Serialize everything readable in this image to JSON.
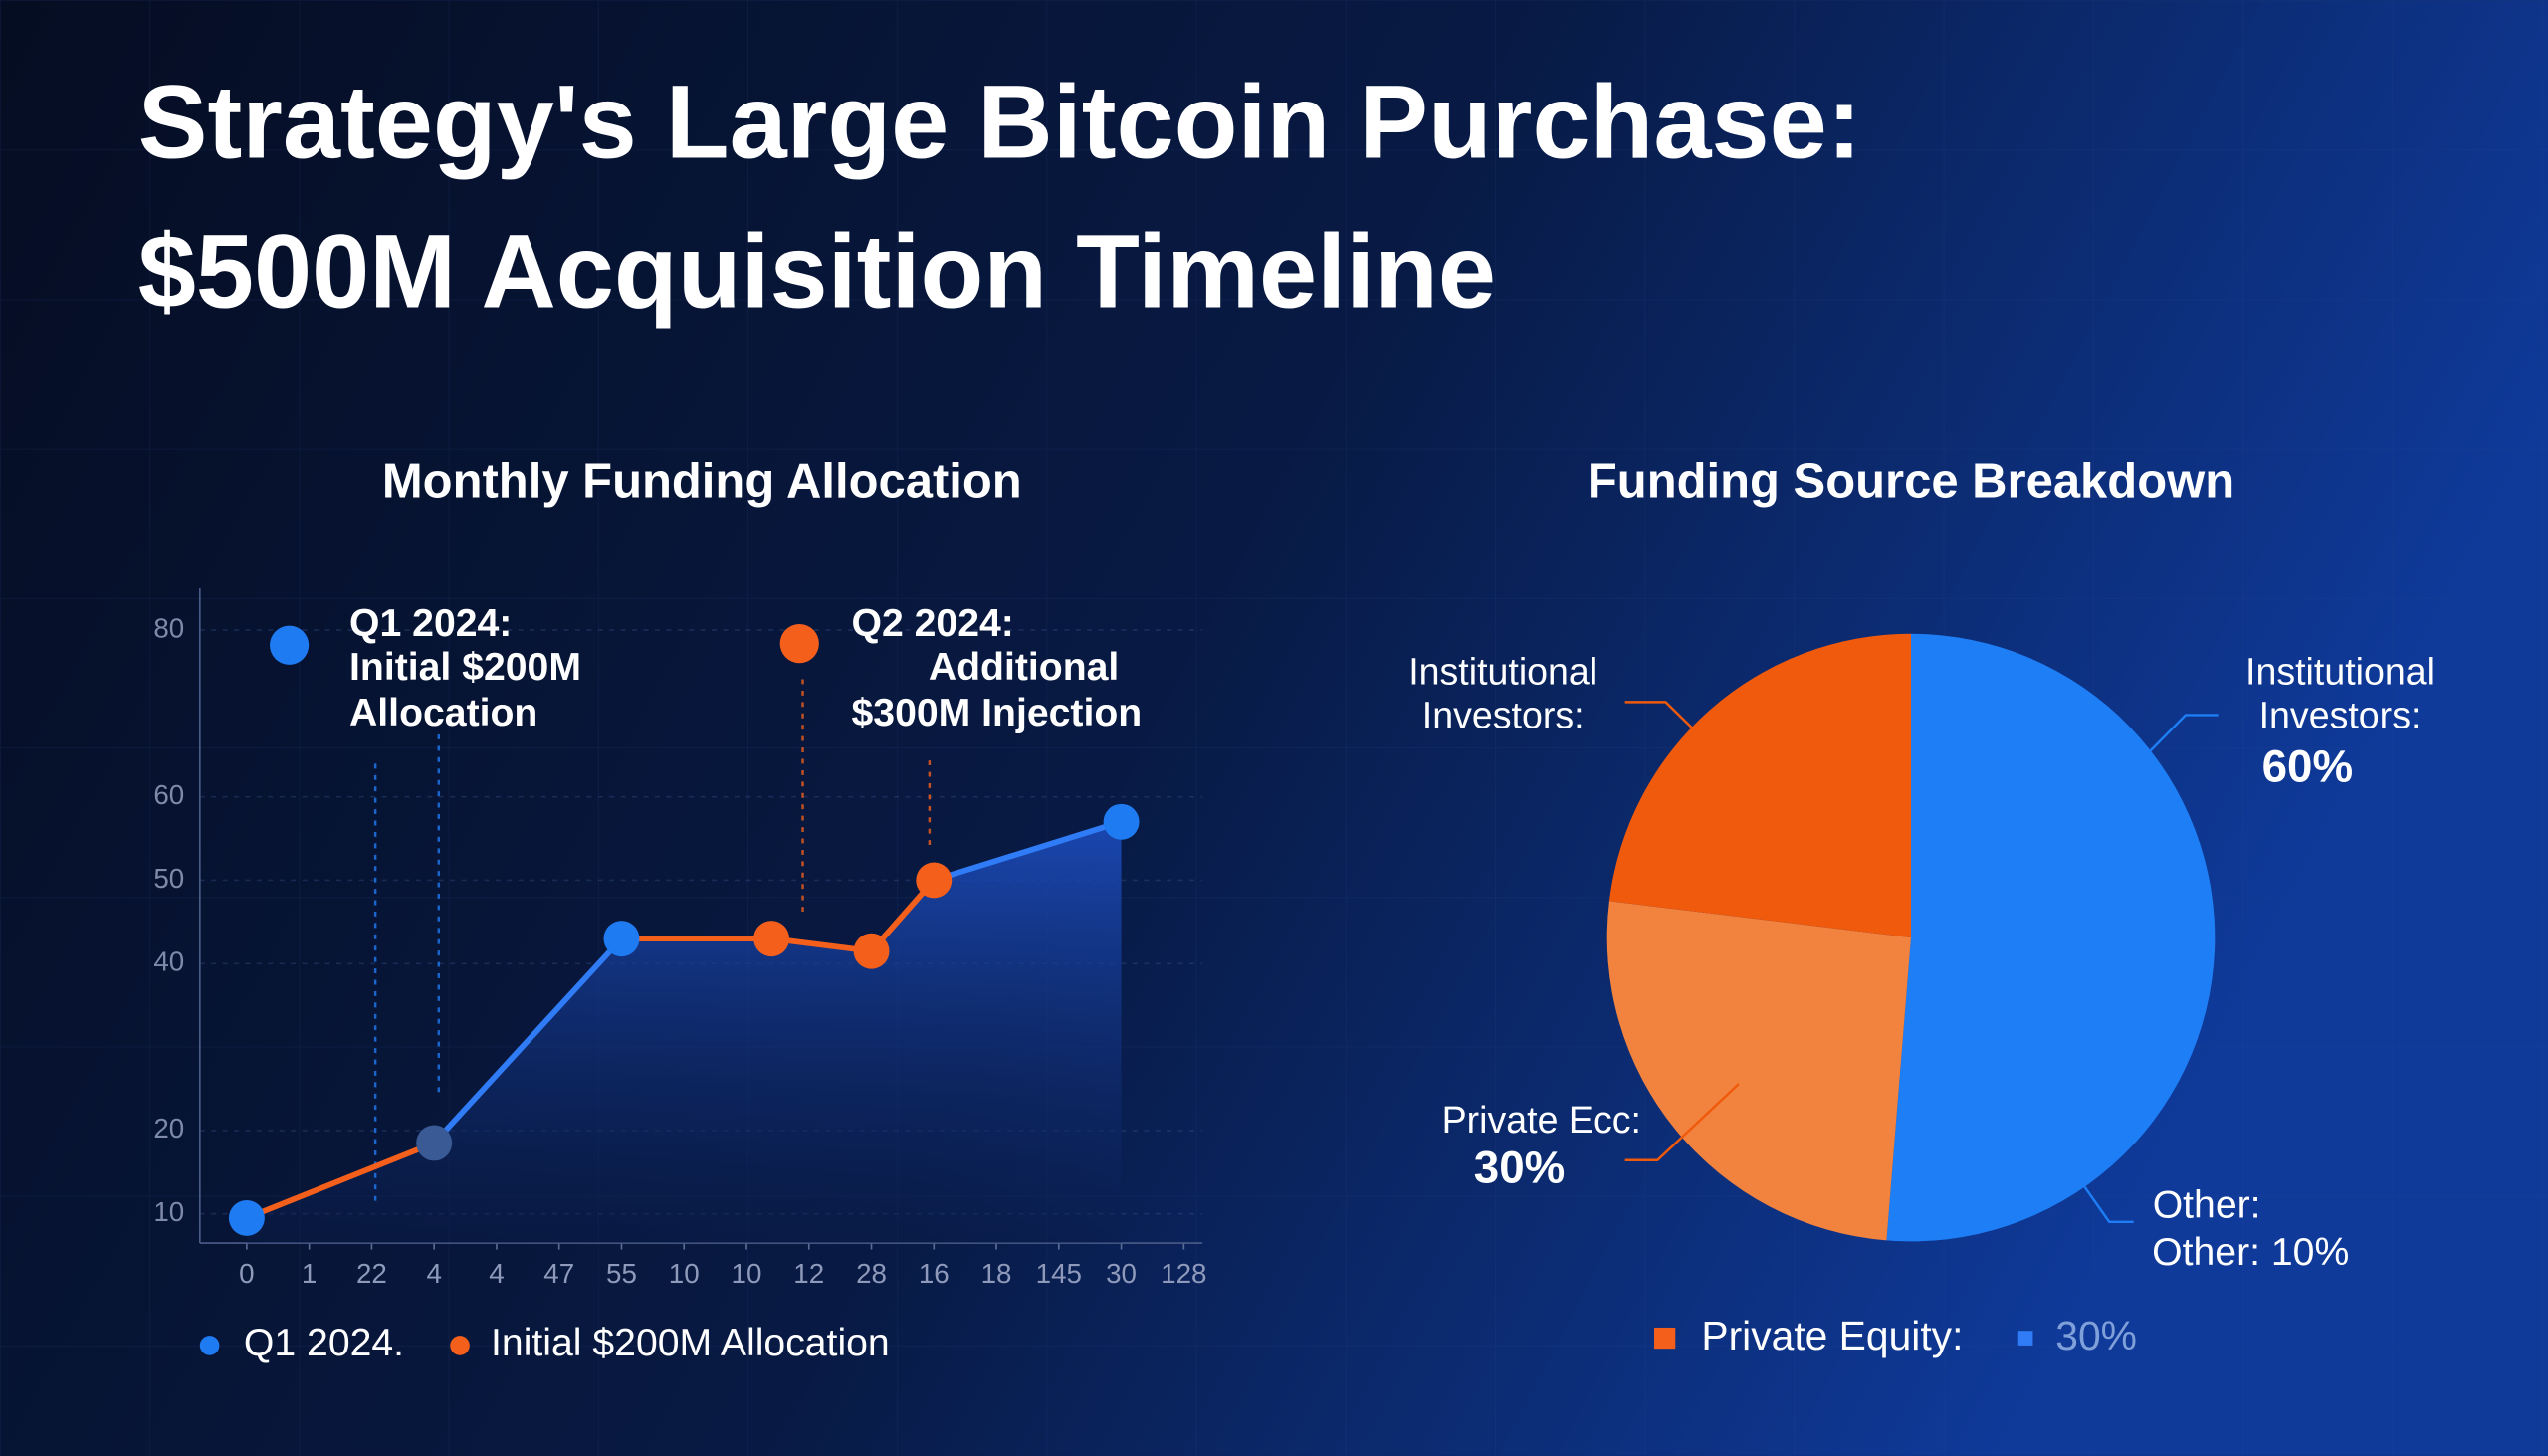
{
  "title": [
    "Strategy's Large Bitcoin Purchase:",
    "$500M Acquisition Timeline"
  ],
  "chart_data": [
    {
      "type": "line",
      "title": "Monthly Funding Allocation",
      "x": [
        0,
        3,
        6,
        8.4,
        10,
        11,
        14
      ],
      "values": [
        9.5,
        18.5,
        43,
        43,
        41.5,
        50,
        57
      ],
      "point_colors": [
        "#1f7bf2",
        "#3a5a96",
        "#1f7bf2",
        "#f4601c",
        "#f4601c",
        "#f4601c",
        "#1f7bf2"
      ],
      "segment_colors": [
        "#f4601c",
        "#2f7cf6",
        "#f4601c",
        "#f4601c",
        "#f4601c",
        "#2f7cf6"
      ],
      "xlim": [
        -0.75,
        15.3
      ],
      "xticks": [
        0,
        1,
        {
          "value": 2,
          "label": "22"
        },
        {
          "value": 3,
          "label": "4"
        },
        {
          "value": 4,
          "label": "4"
        },
        {
          "value": 5,
          "label": "47"
        },
        {
          "value": 6,
          "label": "55"
        },
        {
          "value": 7,
          "label": "10"
        },
        {
          "value": 8,
          "label": "10"
        },
        {
          "value": 9,
          "label": "12"
        },
        {
          "value": 10,
          "label": "28"
        },
        {
          "value": 11,
          "label": "16"
        },
        {
          "value": 12,
          "label": "18"
        },
        {
          "value": 13,
          "label": "145"
        },
        {
          "value": 14,
          "label": "30"
        },
        {
          "value": 15,
          "label": "128"
        }
      ],
      "ylim": [
        6.5,
        85
      ],
      "yticks": [
        10,
        20,
        40,
        50,
        60,
        80
      ],
      "grid": true,
      "annotations": [
        {
          "text": [
            "Q1 2024:",
            "Initial $200M",
            "Allocation"
          ],
          "color": "#1f7bf2"
        },
        {
          "text": [
            "Q2 2024:",
            "Additional",
            "$300M Injection"
          ],
          "color": "#f4601c"
        }
      ],
      "legend": [
        {
          "name": "Q1 2024.",
          "color": "#1f7bf2"
        },
        {
          "name": "Initial $200M Allocation",
          "color": "#f4601c"
        }
      ]
    },
    {
      "type": "pie",
      "title": "Funding Source Breakdown",
      "categories": [
        "Institutional Investors:",
        "Private Ecc:",
        "Institutional Investors:"
      ],
      "values": [
        60,
        30,
        27
      ],
      "value_labels": [
        "60%",
        "30%",
        null
      ],
      "colors": [
        "#1e7ef5",
        "#f2833f",
        "#f05a0c"
      ],
      "annotations": [
        {
          "text": [
            "Other:",
            "Other: 10%"
          ]
        }
      ],
      "legend": [
        {
          "name": "Private Equity:",
          "color": "#f4601c"
        },
        {
          "name": "30%",
          "color": "#2f7cf6"
        }
      ]
    }
  ]
}
